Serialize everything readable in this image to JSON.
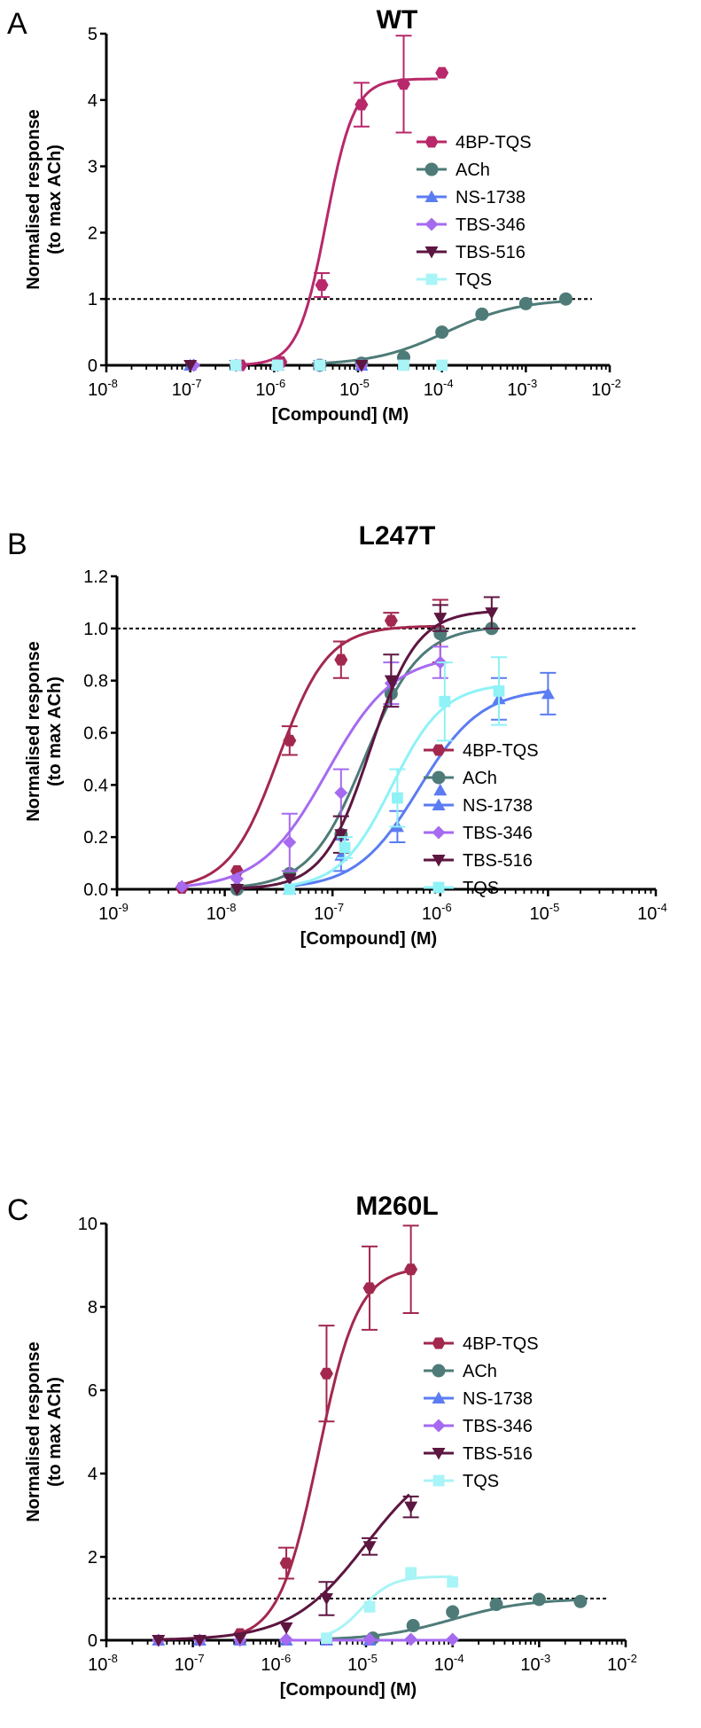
{
  "chart_data": [
    {
      "type": "scatter",
      "panel_letter": "A",
      "title": "WT",
      "xlabel": "[Compound] (M)",
      "ylabel": [
        "Normalised response",
        "(to max ACh)"
      ],
      "x_scale": "log",
      "xlim_exp": [
        -8,
        -2
      ],
      "x_tick_exps": [
        -8,
        -7,
        -6,
        -5,
        -4,
        -3,
        -2
      ],
      "ylim": [
        0,
        5
      ],
      "y_ticks": [
        0,
        1,
        2,
        3,
        4,
        5
      ],
      "y_tick_labels": [
        "0",
        "1",
        "2",
        "3",
        "4",
        "5"
      ],
      "reference_line": 1,
      "legend_position": "right",
      "series": [
        {
          "name": "4BP-TQS",
          "color": "#b8286a",
          "marker": "hexagon",
          "fit": {
            "bottom": 0,
            "top": 4.32,
            "log_ec50": -5.38,
            "hill": 2.6,
            "x_from": -6.4,
            "x_to": -4.05
          },
          "points": [
            {
              "x": 4e-07,
              "y": 0.0
            },
            {
              "x": 1.2e-06,
              "y": 0.05
            },
            {
              "x": 3.7e-06,
              "y": 1.21,
              "err": 0.18
            },
            {
              "x": 1.1e-05,
              "y": 3.93,
              "err": 0.33
            },
            {
              "x": 3.5e-05,
              "y": 4.24,
              "err": 0.73
            },
            {
              "x": 0.0001,
              "y": 4.41
            }
          ]
        },
        {
          "name": "ACh",
          "color": "#4e7b78",
          "marker": "circle",
          "fit": {
            "bottom": 0,
            "top": 1.0,
            "log_ec50": -3.95,
            "hill": 1.0,
            "x_from": -5.55,
            "x_to": -2.5
          },
          "points": [
            {
              "x": 3.5e-06,
              "y": 0.0
            },
            {
              "x": 1.1e-05,
              "y": 0.03
            },
            {
              "x": 3.5e-05,
              "y": 0.12
            },
            {
              "x": 0.0001,
              "y": 0.5
            },
            {
              "x": 0.0003,
              "y": 0.77
            },
            {
              "x": 0.001,
              "y": 0.93
            },
            {
              "x": 0.003,
              "y": 1.0
            }
          ]
        },
        {
          "name": "NS-1738",
          "color": "#5b7cf2",
          "marker": "triangle-up",
          "fit": null,
          "points": [
            {
              "x": 1e-07,
              "y": 0
            },
            {
              "x": 3.5e-07,
              "y": 0
            },
            {
              "x": 1.1e-06,
              "y": 0
            },
            {
              "x": 3.5e-06,
              "y": 0
            },
            {
              "x": 1.1e-05,
              "y": 0
            }
          ]
        },
        {
          "name": "TBS-346",
          "color": "#a66af0",
          "marker": "diamond",
          "fit": null,
          "points": [
            {
              "x": 1.1e-07,
              "y": 0
            },
            {
              "x": 3.5e-07,
              "y": 0
            },
            {
              "x": 1.1e-06,
              "y": 0
            },
            {
              "x": 3.5e-06,
              "y": 0
            },
            {
              "x": 1.1e-05,
              "y": 0
            }
          ]
        },
        {
          "name": "TBS-516",
          "color": "#5c1640",
          "marker": "triangle-down",
          "fit": null,
          "points": [
            {
              "x": 1e-07,
              "y": 0
            },
            {
              "x": 3.5e-07,
              "y": 0
            },
            {
              "x": 1.1e-06,
              "y": 0
            },
            {
              "x": 3.5e-06,
              "y": 0
            },
            {
              "x": 1.1e-05,
              "y": 0
            }
          ]
        },
        {
          "name": "TQS",
          "color": "#a8f4f6",
          "marker": "square",
          "fit": null,
          "points": [
            {
              "x": 3.5e-07,
              "y": 0
            },
            {
              "x": 1.1e-06,
              "y": 0
            },
            {
              "x": 3.5e-06,
              "y": 0
            },
            {
              "x": 3.5e-05,
              "y": 0
            },
            {
              "x": 0.0001,
              "y": 0
            }
          ]
        }
      ]
    },
    {
      "type": "scatter",
      "panel_letter": "B",
      "title": "L247T",
      "xlabel": "[Compound] (M)",
      "ylabel": [
        "Normalised response",
        "(to max ACh)"
      ],
      "x_scale": "log",
      "xlim_exp": [
        -9,
        -4
      ],
      "x_tick_exps": [
        -9,
        -8,
        -7,
        -6,
        -5,
        -4
      ],
      "ylim": [
        0,
        1.2
      ],
      "y_ticks": [
        0,
        0.2,
        0.4,
        0.6,
        0.8,
        1.0,
        1.2
      ],
      "y_tick_labels": [
        "0.0",
        "0.2",
        "0.4",
        "0.6",
        "0.8",
        "1.0",
        "1.2"
      ],
      "reference_line": 1,
      "legend_position": "right",
      "series": [
        {
          "name": "4BP-TQS",
          "color": "#a3284e",
          "marker": "hexagon",
          "fit": {
            "bottom": 0,
            "top": 1.01,
            "log_ec50": -7.5,
            "hill": 1.9,
            "x_from": -8.4,
            "x_to": -6.0
          },
          "points": [
            {
              "x": 4e-09,
              "y": 0.005
            },
            {
              "x": 1.3e-08,
              "y": 0.07
            },
            {
              "x": 4e-08,
              "y": 0.57,
              "err": 0.055
            },
            {
              "x": 1.2e-07,
              "y": 0.88,
              "err": 0.07
            },
            {
              "x": 3.5e-07,
              "y": 1.03,
              "err": 0.03
            },
            {
              "x": 1e-06,
              "y": 0.99,
              "err": 0.12
            }
          ]
        },
        {
          "name": "ACh",
          "color": "#4e7b78",
          "marker": "circle",
          "fit": {
            "bottom": 0,
            "top": 1.01,
            "log_ec50": -6.7,
            "hill": 1.7,
            "x_from": -7.9,
            "x_to": -5.5
          },
          "points": [
            {
              "x": 1.3e-08,
              "y": 0.0
            },
            {
              "x": 4e-08,
              "y": 0.06
            },
            {
              "x": 1.2e-07,
              "y": 0.21
            },
            {
              "x": 3.5e-07,
              "y": 0.75
            },
            {
              "x": 1e-06,
              "y": 0.98
            },
            {
              "x": 3e-06,
              "y": 1.0
            }
          ]
        },
        {
          "name": "NS-1738",
          "color": "#5b7cf2",
          "marker": "triangle-up",
          "fit": {
            "bottom": 0,
            "top": 0.77,
            "log_ec50": -6.2,
            "hill": 1.5,
            "x_from": -7.4,
            "x_to": -5.0
          },
          "points": [
            {
              "x": 4e-08,
              "y": 0.0
            },
            {
              "x": 1.2e-07,
              "y": 0.13,
              "err": 0.06
            },
            {
              "x": 4e-07,
              "y": 0.24,
              "err": 0.06
            },
            {
              "x": 1e-06,
              "y": 0.38
            },
            {
              "x": 3.5e-06,
              "y": 0.73,
              "err": 0.08
            },
            {
              "x": 1e-05,
              "y": 0.75,
              "err": 0.08
            }
          ]
        },
        {
          "name": "TBS-346",
          "color": "#a66af0",
          "marker": "diamond",
          "fit": {
            "bottom": 0,
            "top": 0.9,
            "log_ec50": -7.05,
            "hill": 1.4,
            "x_from": -8.4,
            "x_to": -6.0
          },
          "points": [
            {
              "x": 4e-09,
              "y": 0.01
            },
            {
              "x": 1.3e-08,
              "y": 0.04
            },
            {
              "x": 4e-08,
              "y": 0.18,
              "err": 0.11
            },
            {
              "x": 1.2e-07,
              "y": 0.37,
              "err": 0.09
            },
            {
              "x": 3.5e-07,
              "y": 0.79,
              "err": 0.08
            },
            {
              "x": 1e-06,
              "y": 0.87,
              "err": 0.06
            }
          ]
        },
        {
          "name": "TBS-516",
          "color": "#5c1640",
          "marker": "triangle-down",
          "fit": {
            "bottom": 0,
            "top": 1.07,
            "log_ec50": -6.65,
            "hill": 2.0,
            "x_from": -7.9,
            "x_to": -5.5
          },
          "points": [
            {
              "x": 1.3e-08,
              "y": 0.0
            },
            {
              "x": 4e-08,
              "y": 0.04
            },
            {
              "x": 1.2e-07,
              "y": 0.21,
              "err": 0.07
            },
            {
              "x": 3.5e-07,
              "y": 0.8,
              "err": 0.1
            },
            {
              "x": 1e-06,
              "y": 1.04,
              "err": 0.05
            },
            {
              "x": 3e-06,
              "y": 1.06,
              "err": 0.06
            }
          ]
        },
        {
          "name": "TQS",
          "color": "#8ef2f6",
          "marker": "square",
          "fit": {
            "bottom": 0,
            "top": 0.79,
            "log_ec50": -6.45,
            "hill": 1.8,
            "x_from": -7.4,
            "x_to": -5.5
          },
          "points": [
            {
              "x": 4e-08,
              "y": 0.0
            },
            {
              "x": 1.3e-07,
              "y": 0.16,
              "err": 0.04
            },
            {
              "x": 4e-07,
              "y": 0.35,
              "err": 0.11
            },
            {
              "x": 1.1e-06,
              "y": 0.72,
              "err": 0.15
            },
            {
              "x": 3.5e-06,
              "y": 0.76,
              "err": 0.13
            }
          ]
        }
      ]
    },
    {
      "type": "scatter",
      "panel_letter": "C",
      "title": "M260L",
      "xlabel": "[Compound] (M)",
      "ylabel": [
        "Normalised response",
        "(to max ACh)"
      ],
      "x_scale": "log",
      "xlim_exp": [
        -8,
        -2
      ],
      "x_tick_exps": [
        -8,
        -7,
        -6,
        -5,
        -4,
        -3,
        -2
      ],
      "ylim": [
        0,
        10
      ],
      "y_ticks": [
        0,
        2,
        4,
        6,
        8,
        10
      ],
      "y_tick_labels": [
        "0",
        "2",
        "4",
        "6",
        "8",
        "10"
      ],
      "reference_line": 1,
      "legend_position": "right",
      "series": [
        {
          "name": "4BP-TQS",
          "color": "#a3284e",
          "marker": "hexagon",
          "fit": {
            "bottom": 0,
            "top": 8.95,
            "log_ec50": -5.55,
            "hill": 1.9,
            "x_from": -6.5,
            "x_to": -4.5
          },
          "points": [
            {
              "x": 3.5e-07,
              "y": 0.15
            },
            {
              "x": 1.2e-06,
              "y": 1.85,
              "err": 0.37
            },
            {
              "x": 3.5e-06,
              "y": 6.4,
              "err": 1.15
            },
            {
              "x": 1.1e-05,
              "y": 8.45,
              "err": 1.0
            },
            {
              "x": 3.3e-05,
              "y": 8.9,
              "err": 1.05
            }
          ]
        },
        {
          "name": "ACh",
          "color": "#4e7b78",
          "marker": "circle",
          "fit": {
            "bottom": 0,
            "top": 1.0,
            "log_ec50": -4.0,
            "hill": 1.0,
            "x_from": -5.5,
            "x_to": -2.5
          },
          "points": [
            {
              "x": 1.2e-05,
              "y": 0.05
            },
            {
              "x": 3.5e-05,
              "y": 0.35
            },
            {
              "x": 0.0001,
              "y": 0.68
            },
            {
              "x": 0.00032,
              "y": 0.86
            },
            {
              "x": 0.001,
              "y": 0.98
            },
            {
              "x": 0.003,
              "y": 0.93
            }
          ]
        },
        {
          "name": "NS-1738",
          "color": "#5b7cf2",
          "marker": "triangle-up",
          "fit": null,
          "points": [
            {
              "x": 4e-08,
              "y": 0
            },
            {
              "x": 1.2e-07,
              "y": 0
            },
            {
              "x": 3.5e-07,
              "y": 0
            },
            {
              "x": 1.2e-06,
              "y": 0
            },
            {
              "x": 3.5e-06,
              "y": 0
            },
            {
              "x": 1.1e-05,
              "y": 0
            }
          ]
        },
        {
          "name": "TBS-346",
          "color": "#a66af0",
          "marker": "diamond",
          "fit": {
            "bottom": 0,
            "top": 0,
            "log_ec50": -5,
            "hill": 1,
            "x_from": -6.0,
            "x_to": -4.0
          },
          "points": [
            {
              "x": 4e-08,
              "y": 0
            },
            {
              "x": 1.2e-07,
              "y": 0
            },
            {
              "x": 3.5e-07,
              "y": 0
            },
            {
              "x": 1.2e-06,
              "y": 0.02
            },
            {
              "x": 3.5e-06,
              "y": 0.02
            },
            {
              "x": 1.1e-05,
              "y": 0.02
            },
            {
              "x": 3.3e-05,
              "y": 0.02
            },
            {
              "x": 0.0001,
              "y": 0.02
            }
          ]
        },
        {
          "name": "TBS-516",
          "color": "#5c1640",
          "marker": "triangle-down",
          "fit": {
            "bottom": 0,
            "top": 4.6,
            "log_ec50": -5.0,
            "hill": 1.0,
            "x_from": -7.4,
            "x_to": -4.5
          },
          "points": [
            {
              "x": 4e-08,
              "y": 0
            },
            {
              "x": 1.2e-07,
              "y": 0
            },
            {
              "x": 3.5e-07,
              "y": 0.05
            },
            {
              "x": 1.2e-06,
              "y": 0.3
            },
            {
              "x": 3.5e-06,
              "y": 1.0,
              "err": 0.4
            },
            {
              "x": 1.1e-05,
              "y": 2.25,
              "err": 0.2
            },
            {
              "x": 3.3e-05,
              "y": 3.2,
              "err": 0.25
            }
          ]
        },
        {
          "name": "TQS",
          "color": "#a8f4f6",
          "marker": "square",
          "fit": {
            "bottom": 0,
            "top": 1.53,
            "log_ec50": -5.05,
            "hill": 2.5,
            "x_from": -5.5,
            "x_to": -4.0
          },
          "points": [
            {
              "x": 3.5e-06,
              "y": 0.05
            },
            {
              "x": 1.1e-05,
              "y": 0.8
            },
            {
              "x": 3.3e-05,
              "y": 1.62
            },
            {
              "x": 0.0001,
              "y": 1.4
            }
          ]
        }
      ]
    }
  ]
}
